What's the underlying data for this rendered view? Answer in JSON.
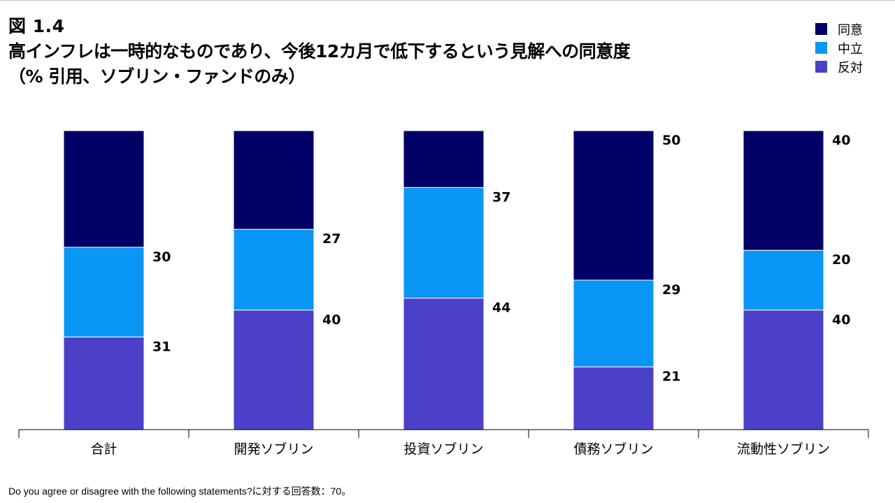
{
  "figure_label": "図 1.4",
  "title_line1": "高インフレは一時的なものであり、今後12カ月で低下するという見解への同意度",
  "title_line2": "（% 引用、ソブリン・ファンドのみ）",
  "footnote": "Do you agree or disagree with the following statements?に対する回答数：70。",
  "colors": {
    "agree": "#000066",
    "neutral": "#0a96f5",
    "disagree": "#4b40c8"
  },
  "legend": [
    {
      "label": "同意",
      "color": "#000066"
    },
    {
      "label": "中立",
      "color": "#0a96f5"
    },
    {
      "label": "反対",
      "color": "#4b40c8"
    }
  ],
  "chart_data": {
    "type": "bar",
    "stacked": true,
    "orientation": "vertical",
    "categories": [
      "合計",
      "開発ソブリン",
      "投資ソブリン",
      "債務ソブリン",
      "流動性ソブリン"
    ],
    "series": [
      {
        "name": "反対",
        "values": [
          31,
          40,
          44,
          21,
          40
        ],
        "labels": [
          "31",
          "40",
          "44",
          "21",
          "40"
        ]
      },
      {
        "name": "中立",
        "values": [
          30,
          27,
          37,
          29,
          20
        ],
        "labels": [
          "30",
          "27",
          "37",
          "29",
          "20"
        ]
      },
      {
        "name": "同意",
        "values": [
          39,
          33,
          19,
          50,
          40
        ],
        "labels": [
          "",
          "",
          "",
          "50",
          "40"
        ]
      }
    ],
    "ylim": [
      0,
      100
    ],
    "legend_position": "top-right",
    "grid": false
  }
}
